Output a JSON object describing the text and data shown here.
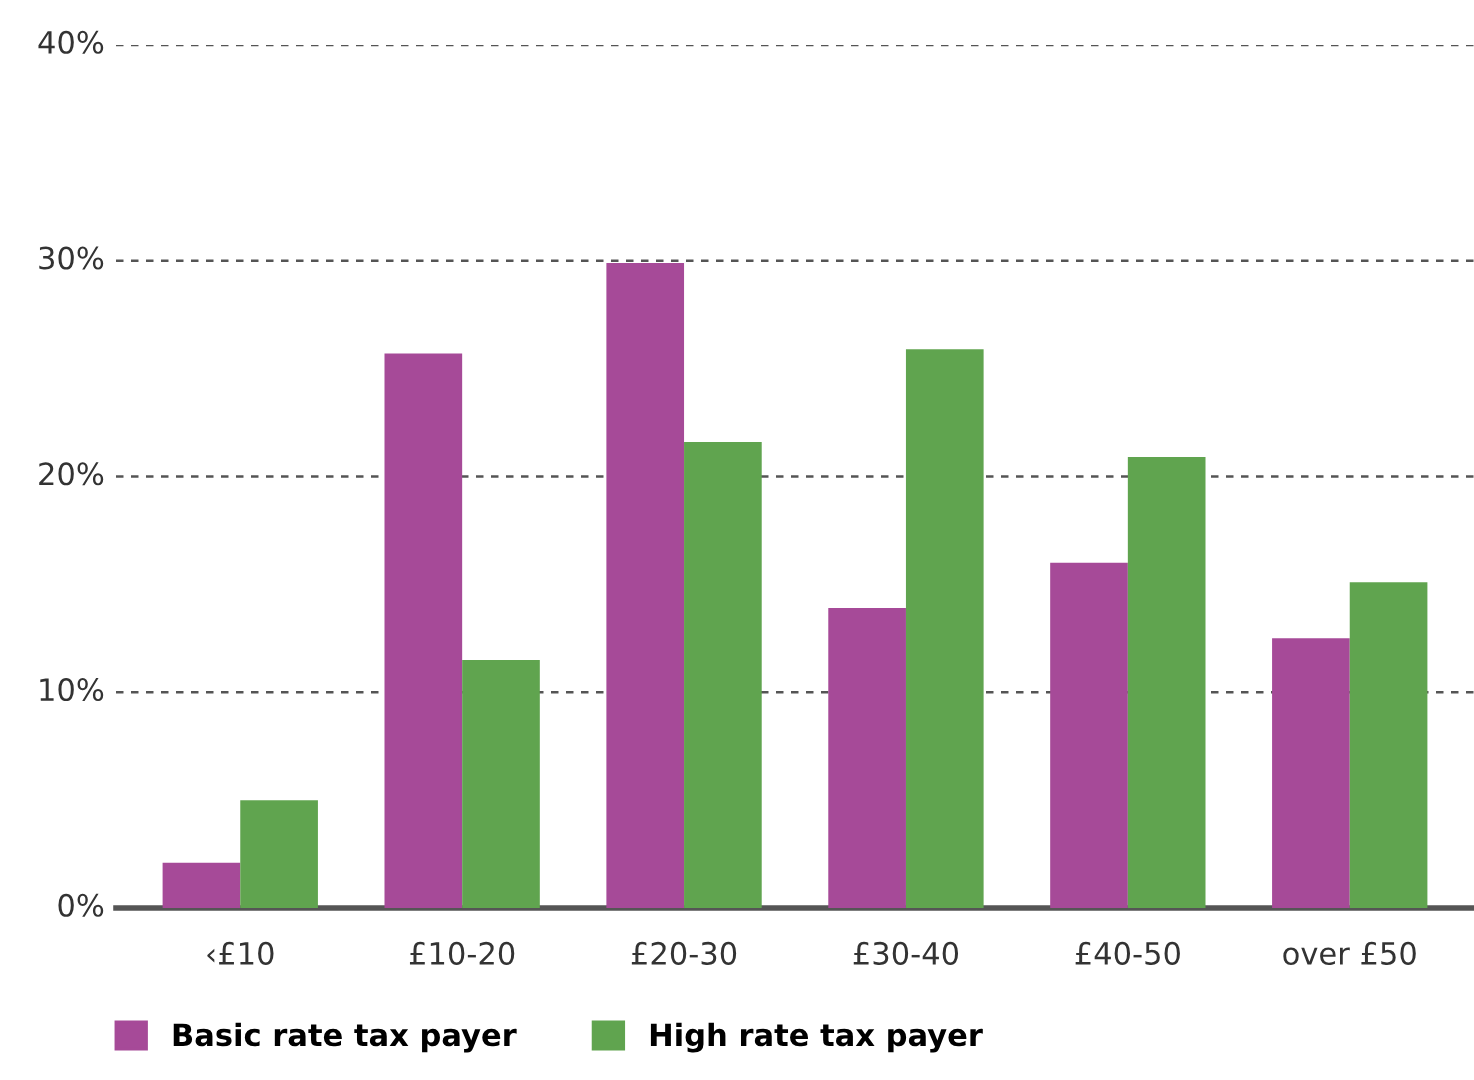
{
  "chart_data": {
    "type": "bar",
    "categories": [
      "‹£10",
      "£10-20",
      "£20-30",
      "£30-40",
      "£40-50",
      "over £50"
    ],
    "series": [
      {
        "name": "Basic rate tax payer",
        "color": "#a64a98",
        "values": [
          2.1,
          25.7,
          29.9,
          13.9,
          16.0,
          12.5
        ]
      },
      {
        "name": "High rate tax payer",
        "color": "#60a44f",
        "values": [
          5.0,
          11.5,
          21.6,
          25.9,
          20.9,
          15.1
        ]
      }
    ],
    "ylim": [
      0,
      40
    ],
    "yticks": [
      {
        "value": 0,
        "label": "0%"
      },
      {
        "value": 10,
        "label": "10%"
      },
      {
        "value": 20,
        "label": "20%"
      },
      {
        "value": 30,
        "label": "30%"
      },
      {
        "value": 40,
        "label": "40%"
      }
    ],
    "grid": "y",
    "legend": "bottom left"
  }
}
